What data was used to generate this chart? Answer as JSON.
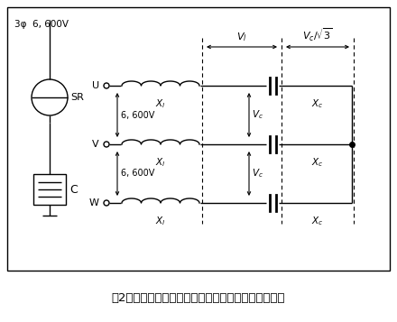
{
  "title": "第2図　直列リアクトル付き進相コンデンサの接続図",
  "bg_color": "#ffffff",
  "line_color": "#000000",
  "fig_width": 4.4,
  "fig_height": 3.57,
  "dpi": 100,
  "label_3phi": "3φ  6, 600V",
  "label_SR": "SR",
  "label_C": "C",
  "Vl_label": "$V_l$",
  "Vc_sqrt3_label": "$V_c/\\sqrt{3}$",
  "Xl_label": "$X_l$",
  "Xc_label": "$X_c$",
  "Vc_mid_label": "$V_c$",
  "voltage_inter": "6, 600V"
}
